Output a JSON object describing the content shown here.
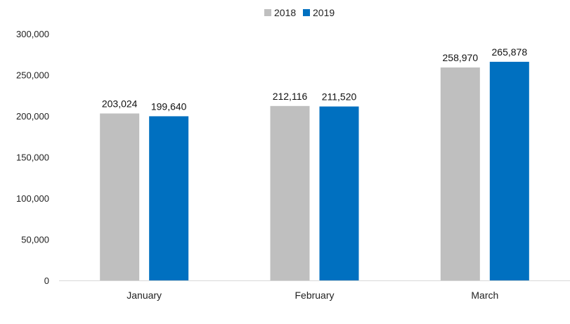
{
  "chart_data": {
    "type": "bar",
    "title": "",
    "xlabel": "",
    "ylabel": "",
    "categories": [
      "January",
      "February",
      "March"
    ],
    "series": [
      {
        "name": "2018",
        "values": [
          203024,
          212116,
          258970
        ],
        "color": "#BFBFBF",
        "labels": [
          "203,024",
          "212,116",
          "258,970"
        ]
      },
      {
        "name": "2019",
        "values": [
          199640,
          211520,
          265878
        ],
        "color": "#0070C0",
        "labels": [
          "199,640",
          "211,520",
          "265,878"
        ]
      }
    ],
    "ylim": [
      0,
      300000
    ],
    "yticks": [
      0,
      50000,
      100000,
      150000,
      200000,
      250000,
      300000
    ],
    "ytick_labels": [
      "0",
      "50,000",
      "100,000",
      "150,000",
      "200,000",
      "250,000",
      "300,000"
    ],
    "grid": false,
    "legend_position": "top-center"
  }
}
